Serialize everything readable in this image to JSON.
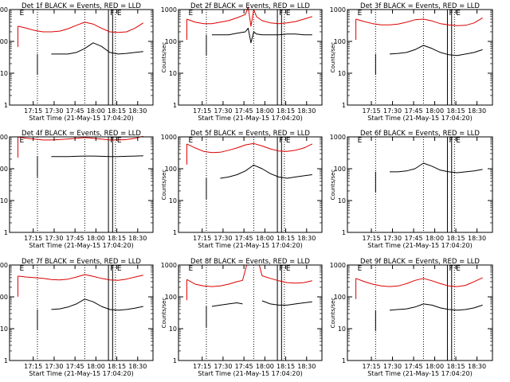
{
  "figure": {
    "panels": [
      "Det 1f",
      "Det 2f",
      "Det 3f",
      "Det 4f",
      "Det 5f",
      "Det 6f",
      "Det 7f",
      "Det 8f",
      "Det 9f"
    ]
  },
  "chart_data": [
    {
      "type": "line",
      "title": "Det 1f BLACK = Events, RED = LLD",
      "ylabel": "Counts/sec",
      "xlabel": "Start Time (21-May-15 17:04:20)",
      "xticks": [
        "17:15",
        "17:30",
        "17:45",
        "18:00",
        "18:15",
        "18:30"
      ],
      "yticks": [
        "1",
        "10",
        "100",
        "1000"
      ],
      "yscale": "log",
      "ylim": [
        1,
        1000
      ],
      "x_minutes": [
        0,
        6,
        12,
        18,
        24,
        30,
        36,
        42,
        48,
        54,
        60,
        66,
        72,
        78,
        84,
        90
      ],
      "series": [
        {
          "color": "#000000",
          "start_minute": 14,
          "values": [
            null,
            null,
            null,
            null,
            40,
            40,
            40,
            45,
            60,
            90,
            70,
            45,
            40,
            42,
            45,
            48
          ]
        },
        {
          "color": "#dd0000",
          "start_minute": 0,
          "values": [
            300,
            260,
            220,
            200,
            200,
            210,
            250,
            320,
            400,
            350,
            260,
            200,
            190,
            200,
            260,
            380
          ]
        }
      ],
      "markers": {
        "dotted_minutes": [
          14,
          48,
          70
        ],
        "solid_minutes": [
          65,
          68
        ],
        "labels": [
          {
            "text": "E",
            "minute": 0
          },
          {
            "text": "F",
            "minute": 65
          },
          {
            "text": "E",
            "minute": 70
          }
        ]
      }
    },
    {
      "type": "line",
      "title": "Det 2f BLACK = Events, RED = LLD",
      "ylabel": "Counts/sec",
      "xlabel": "Start Time (21-May-15 17:04:20)",
      "xticks": [
        "17:15",
        "17:30",
        "17:45",
        "18:00",
        "18:15",
        "18:30"
      ],
      "yticks": [
        "1",
        "10",
        "100",
        "1000"
      ],
      "yscale": "log",
      "ylim": [
        1,
        1000
      ],
      "x_minutes": [
        0,
        6,
        12,
        18,
        24,
        30,
        36,
        42,
        44,
        46,
        48,
        50,
        54,
        60,
        66,
        72,
        78,
        84,
        90
      ],
      "series": [
        {
          "color": "#000000",
          "start_minute": 14,
          "values": [
            null,
            null,
            null,
            160,
            160,
            160,
            180,
            200,
            260,
            90,
            200,
            170,
            160,
            160,
            160,
            170,
            170,
            160,
            160
          ]
        },
        {
          "color": "#dd0000",
          "start_minute": 0,
          "values": [
            500,
            400,
            360,
            360,
            400,
            450,
            550,
            700,
            1200,
            300,
            1000,
            600,
            450,
            380,
            360,
            380,
            420,
            500,
            600
          ]
        }
      ],
      "markers": {
        "dotted_minutes": [
          14,
          48,
          70
        ],
        "solid_minutes": [
          65,
          68
        ],
        "labels": [
          {
            "text": "E",
            "minute": 0
          },
          {
            "text": "F",
            "minute": 65
          },
          {
            "text": "E",
            "minute": 70
          }
        ]
      }
    },
    {
      "type": "line",
      "title": "Det 3f BLACK = Events, RED = LLD",
      "ylabel": "Counts/sec",
      "xlabel": "Start Time (21-May-15 17:04:20)",
      "xticks": [
        "17:15",
        "17:30",
        "17:45",
        "18:00",
        "18:15",
        "18:30"
      ],
      "yticks": [
        "1",
        "10",
        "100",
        "1000"
      ],
      "yscale": "log",
      "ylim": [
        1,
        1000
      ],
      "x_minutes": [
        0,
        6,
        12,
        18,
        24,
        30,
        36,
        42,
        48,
        54,
        60,
        66,
        72,
        78,
        84,
        90
      ],
      "series": [
        {
          "color": "#000000",
          "start_minute": 14,
          "values": [
            null,
            null,
            null,
            null,
            40,
            42,
            45,
            55,
            75,
            60,
            45,
            38,
            36,
            40,
            45,
            55
          ]
        },
        {
          "color": "#dd0000",
          "start_minute": 0,
          "values": [
            500,
            420,
            360,
            330,
            330,
            350,
            400,
            480,
            500,
            440,
            360,
            330,
            310,
            320,
            380,
            550
          ]
        }
      ],
      "markers": {
        "dotted_minutes": [
          14,
          48,
          70
        ],
        "solid_minutes": [
          65,
          68
        ],
        "labels": [
          {
            "text": "E",
            "minute": 0
          },
          {
            "text": "F",
            "minute": 65
          },
          {
            "text": "E",
            "minute": 70
          }
        ]
      }
    },
    {
      "type": "line",
      "title": "Det 4f BLACK = Events, RED = LLD",
      "ylabel": "Counts/sec",
      "xlabel": "Start Time (21-May-15 17:04:20)",
      "xticks": [
        "17:15",
        "17:30",
        "17:45",
        "18:00",
        "18:15",
        "18:30"
      ],
      "yticks": [
        "1",
        "10",
        "100",
        "1000"
      ],
      "yscale": "log",
      "ylim": [
        1,
        1000
      ],
      "x_minutes": [
        0,
        6,
        12,
        18,
        24,
        30,
        36,
        42,
        48,
        54,
        60,
        66,
        72,
        78,
        84,
        90
      ],
      "series": [
        {
          "color": "#000000",
          "start_minute": 14,
          "values": [
            null,
            null,
            null,
            null,
            240,
            240,
            240,
            245,
            250,
            250,
            245,
            240,
            240,
            245,
            250,
            255
          ]
        },
        {
          "color": "#dd0000",
          "start_minute": 0,
          "values": [
            1000,
            900,
            850,
            800,
            800,
            820,
            860,
            900,
            950,
            900,
            850,
            800,
            800,
            820,
            900,
            1050
          ]
        }
      ],
      "markers": {
        "dotted_minutes": [
          14,
          48,
          70
        ],
        "solid_minutes": [
          65,
          68
        ],
        "labels": [
          {
            "text": "E",
            "minute": 0
          },
          {
            "text": "F",
            "minute": 65
          },
          {
            "text": "E",
            "minute": 70
          }
        ]
      }
    },
    {
      "type": "line",
      "title": "Det 5f BLACK = Events, RED = LLD",
      "ylabel": "Counts/sec",
      "xlabel": "Start Time (21-May-15 17:04:20)",
      "xticks": [
        "17:15",
        "17:30",
        "17:45",
        "18:00",
        "18:15",
        "18:30"
      ],
      "yticks": [
        "1",
        "10",
        "100",
        "1000"
      ],
      "yscale": "log",
      "ylim": [
        1,
        1000
      ],
      "x_minutes": [
        0,
        6,
        12,
        18,
        24,
        30,
        36,
        42,
        48,
        54,
        60,
        66,
        72,
        78,
        84,
        90
      ],
      "series": [
        {
          "color": "#000000",
          "start_minute": 14,
          "values": [
            null,
            null,
            null,
            null,
            50,
            55,
            65,
            85,
            130,
            100,
            70,
            55,
            50,
            55,
            60,
            65
          ]
        },
        {
          "color": "#dd0000",
          "start_minute": 0,
          "values": [
            600,
            450,
            350,
            320,
            330,
            380,
            450,
            560,
            620,
            520,
            420,
            360,
            350,
            380,
            450,
            600
          ]
        }
      ],
      "markers": {
        "dotted_minutes": [
          14,
          48,
          70
        ],
        "solid_minutes": [
          65,
          68
        ],
        "labels": [
          {
            "text": "E",
            "minute": 0
          },
          {
            "text": "F",
            "minute": 65
          },
          {
            "text": "E",
            "minute": 70
          }
        ]
      }
    },
    {
      "type": "line",
      "title": "Det 6f BLACK = Events, RED = LLD",
      "ylabel": "Counts/sec",
      "xlabel": "Start Time (21-May-15 17:04:20)",
      "xticks": [
        "17:15",
        "17:30",
        "17:45",
        "18:00",
        "18:15",
        "18:30"
      ],
      "yticks": [
        "1",
        "10",
        "100",
        "1000"
      ],
      "yscale": "log",
      "ylim": [
        1,
        1000
      ],
      "x_minutes": [
        0,
        6,
        12,
        18,
        24,
        30,
        36,
        42,
        48,
        54,
        60,
        66,
        72,
        78,
        84,
        90
      ],
      "series": [
        {
          "color": "#000000",
          "start_minute": 14,
          "values": [
            null,
            null,
            null,
            null,
            80,
            80,
            85,
            100,
            150,
            120,
            90,
            80,
            75,
            80,
            85,
            95
          ]
        }
      ],
      "markers": {
        "dotted_minutes": [
          14,
          48,
          70
        ],
        "solid_minutes": [
          65,
          68
        ],
        "labels": [
          {
            "text": "E",
            "minute": 0
          },
          {
            "text": "F",
            "minute": 65
          },
          {
            "text": "E",
            "minute": 70
          }
        ]
      }
    },
    {
      "type": "line",
      "title": "Det 7f BLACK = Events, RED = LLD",
      "ylabel": "Counts/sec",
      "xlabel": "Start Time (21-May-15 17:04:20)",
      "xticks": [
        "17:15",
        "17:30",
        "17:45",
        "18:00",
        "18:15",
        "18:30"
      ],
      "yticks": [
        "1",
        "10",
        "100",
        "1000"
      ],
      "yscale": "log",
      "ylim": [
        1,
        1000
      ],
      "x_minutes": [
        0,
        6,
        12,
        18,
        24,
        30,
        36,
        42,
        48,
        54,
        60,
        66,
        72,
        78,
        84,
        90
      ],
      "series": [
        {
          "color": "#000000",
          "start_minute": 14,
          "values": [
            null,
            null,
            null,
            null,
            40,
            42,
            48,
            60,
            85,
            70,
            50,
            40,
            38,
            40,
            44,
            50
          ]
        },
        {
          "color": "#dd0000",
          "start_minute": 0,
          "values": [
            450,
            420,
            400,
            380,
            350,
            340,
            360,
            420,
            500,
            440,
            380,
            340,
            330,
            360,
            420,
            480
          ]
        }
      ],
      "markers": {
        "dotted_minutes": [
          14,
          48,
          70
        ],
        "solid_minutes": [
          65,
          68
        ],
        "labels": [
          {
            "text": "E",
            "minute": 0
          },
          {
            "text": "F",
            "minute": 65
          },
          {
            "text": "E",
            "minute": 70
          }
        ]
      }
    },
    {
      "type": "line",
      "title": "Det 8f BLACK = Events, RED = LLD",
      "ylabel": "Counts/sec",
      "xlabel": "Start Time (21-May-15 17:04:20)",
      "xticks": [
        "17:15",
        "17:30",
        "17:45",
        "18:00",
        "18:15",
        "18:30"
      ],
      "yticks": [
        "1",
        "10",
        "100",
        "1000"
      ],
      "yscale": "log",
      "ylim": [
        1,
        1000
      ],
      "x_minutes": [
        0,
        6,
        12,
        18,
        24,
        30,
        36,
        40,
        43,
        44,
        47,
        48,
        52,
        54,
        60,
        66,
        72,
        78,
        84,
        90
      ],
      "series": [
        {
          "color": "#000000",
          "start_minute": 14,
          "values": [
            null,
            null,
            null,
            50,
            55,
            60,
            65,
            60,
            null,
            null,
            null,
            120,
            null,
            75,
            60,
            55,
            55,
            60,
            65,
            70
          ]
        },
        {
          "color": "#dd0000",
          "start_minute": 0,
          "values": [
            350,
            250,
            220,
            210,
            220,
            250,
            300,
            330,
            1000,
            1000,
            1000,
            1000,
            1000,
            460,
            380,
            320,
            280,
            270,
            280,
            320
          ]
        }
      ],
      "markers": {
        "dotted_minutes": [
          14,
          48,
          70
        ],
        "solid_minutes": [
          65,
          68
        ],
        "labels": [
          {
            "text": "E",
            "minute": 0
          },
          {
            "text": "F",
            "minute": 65
          },
          {
            "text": "E",
            "minute": 70
          }
        ]
      }
    },
    {
      "type": "line",
      "title": "Det 9f BLACK = Events, RED = LLD",
      "ylabel": "Counts/sec",
      "xlabel": "Start Time (21-May-15 17:04:20)",
      "xticks": [
        "17:15",
        "17:30",
        "17:45",
        "18:00",
        "18:15",
        "18:30"
      ],
      "yticks": [
        "1",
        "10",
        "100",
        "1000"
      ],
      "yscale": "log",
      "ylim": [
        1,
        1000
      ],
      "x_minutes": [
        0,
        6,
        12,
        18,
        24,
        30,
        36,
        42,
        48,
        54,
        60,
        66,
        72,
        78,
        84,
        90
      ],
      "series": [
        {
          "color": "#000000",
          "start_minute": 14,
          "values": [
            null,
            null,
            null,
            null,
            38,
            40,
            42,
            48,
            60,
            55,
            45,
            40,
            38,
            40,
            45,
            55
          ]
        },
        {
          "color": "#dd0000",
          "start_minute": 0,
          "values": [
            380,
            300,
            250,
            220,
            210,
            220,
            260,
            330,
            380,
            320,
            260,
            220,
            210,
            230,
            300,
            400
          ]
        }
      ],
      "markers": {
        "dotted_minutes": [
          14,
          48,
          70
        ],
        "solid_minutes": [
          65,
          68
        ],
        "labels": [
          {
            "text": "E",
            "minute": 0
          },
          {
            "text": "F",
            "minute": 65
          },
          {
            "text": "E",
            "minute": 70
          }
        ]
      }
    }
  ]
}
